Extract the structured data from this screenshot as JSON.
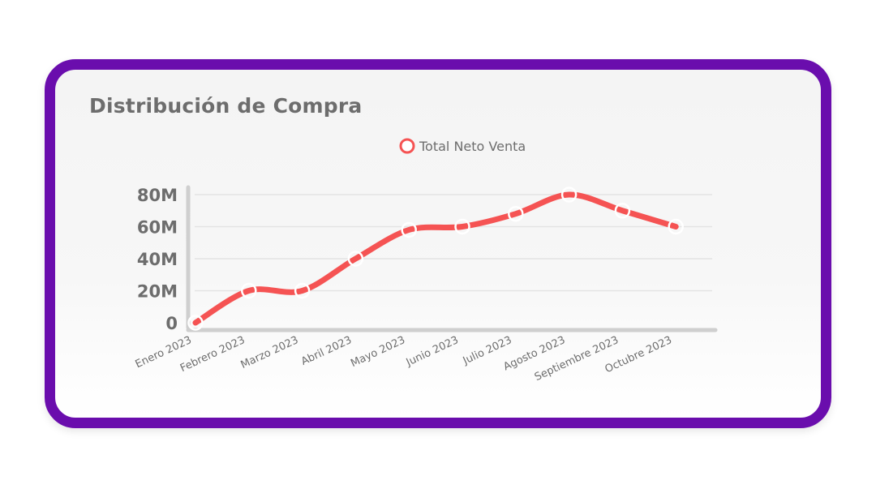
{
  "card": {
    "title": "Distribución de Compra"
  },
  "chart_data": {
    "type": "line",
    "title": "Distribución de Compra",
    "categories": [
      "Enero 2023",
      "Febrero 2023",
      "Marzo 2023",
      "Abril 2023",
      "Mayo 2023",
      "Junio 2023",
      "Julio 2023",
      "Agosto 2023",
      "Septiembre 2023",
      "Octubre 2023"
    ],
    "series": [
      {
        "name": "Total Neto Venta",
        "values": [
          0,
          20,
          20,
          40,
          58,
          60,
          68,
          80,
          70,
          60
        ],
        "color": "#f55353"
      }
    ],
    "y_ticks": [
      "0",
      "20M",
      "40M",
      "60M",
      "80M"
    ],
    "ylim": [
      0,
      80
    ],
    "unit": "M",
    "grid": true,
    "legend_position": "top-center",
    "colors": {
      "frame": "#6a0dad",
      "line": "#f55353",
      "text": "#6d6d6d",
      "grid": "#e3e3e3",
      "axis": "#cfcfcf"
    }
  }
}
